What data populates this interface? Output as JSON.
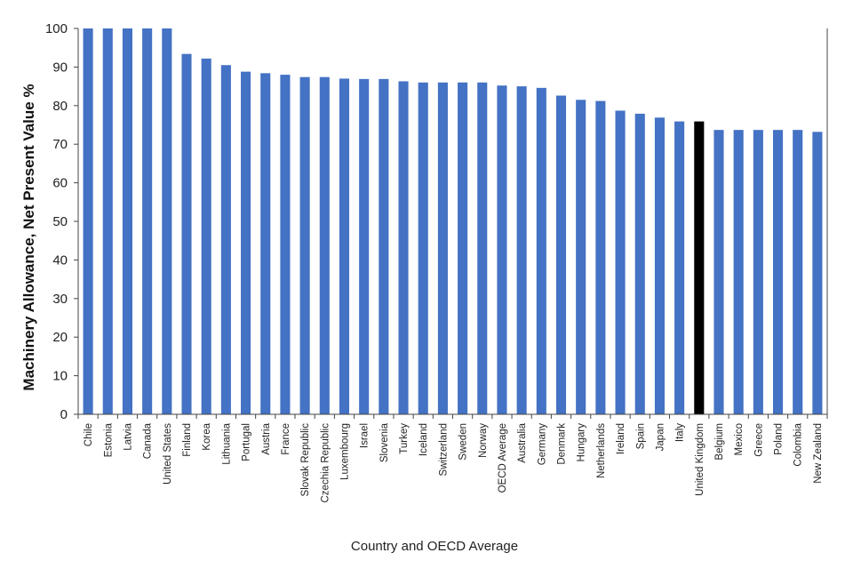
{
  "chart_data": {
    "type": "bar",
    "title": "",
    "xlabel": "Country and OECD Average",
    "ylabel": "Machinery Allowance, Net Present Value  %",
    "ylim": [
      0,
      100
    ],
    "yticks": [
      0,
      10,
      20,
      30,
      40,
      50,
      60,
      70,
      80,
      90,
      100
    ],
    "grid": false,
    "categories": [
      "Chile",
      "Estonia",
      "Latvia",
      "Canada",
      "United States",
      "Finland",
      "Korea",
      "Lithuania",
      "Portugal",
      "Austria",
      "France",
      "Slovak Republic",
      "Czechia Republic",
      "Luxembourg",
      "Israel",
      "Slovenia",
      "Turkey",
      "Iceland",
      "Switzerland",
      "Sweden",
      "Norway",
      "OECD Average",
      "Australia",
      "Germany",
      "Denmark",
      "Hungary",
      "Netherlands",
      "Ireland",
      "Spain",
      "Japan",
      "Italy",
      "United Kingdom",
      "Belgium",
      "Mexico",
      "Greece",
      "Poland",
      "Colombia",
      "New Zealand"
    ],
    "values": [
      100,
      100,
      100,
      100,
      100,
      93.4,
      92.2,
      90.5,
      88.8,
      88.4,
      88.0,
      87.4,
      87.4,
      87.0,
      86.9,
      86.9,
      86.3,
      86.0,
      86.0,
      86.0,
      86.0,
      85.2,
      85.0,
      84.6,
      82.6,
      81.5,
      81.2,
      78.7,
      77.9,
      76.9,
      75.9,
      75.9,
      73.7,
      73.7,
      73.7,
      73.7,
      73.7,
      73.2
    ],
    "highlight": "United Kingdom",
    "colors": {
      "bar": "#4472C4",
      "highlight": "#000000",
      "axis": "#444444"
    }
  }
}
